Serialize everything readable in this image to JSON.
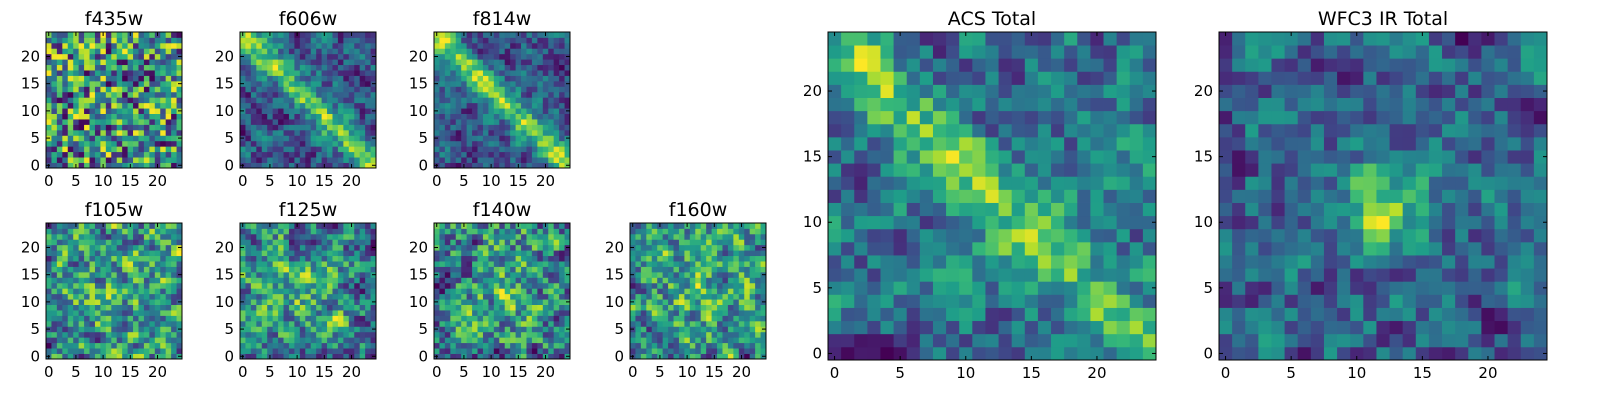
{
  "figure": {
    "colormap": "viridis",
    "background": "#ffffff"
  },
  "chart_data": [
    {
      "type": "heatmap",
      "title": "f435w",
      "grid_size": [
        25,
        25
      ],
      "xlim": [
        0,
        24
      ],
      "ylim": [
        0,
        24
      ],
      "xticks": [
        "0",
        "5",
        "10",
        "15",
        "20"
      ],
      "yticks": [
        "0",
        "5",
        "10",
        "15",
        "20"
      ],
      "pattern": "noise",
      "seed": 11,
      "contrast": 1.0
    },
    {
      "type": "heatmap",
      "title": "f606w",
      "grid_size": [
        25,
        25
      ],
      "xlim": [
        0,
        24
      ],
      "ylim": [
        0,
        24
      ],
      "xticks": [
        "0",
        "5",
        "10",
        "15",
        "20"
      ],
      "yticks": [
        "0",
        "5",
        "10",
        "15",
        "20"
      ],
      "pattern": "diagonal",
      "seed": 23,
      "contrast": 1.0
    },
    {
      "type": "heatmap",
      "title": "f814w",
      "grid_size": [
        25,
        25
      ],
      "xlim": [
        0,
        24
      ],
      "ylim": [
        0,
        24
      ],
      "xticks": [
        "0",
        "5",
        "10",
        "15",
        "20"
      ],
      "yticks": [
        "0",
        "5",
        "10",
        "15",
        "20"
      ],
      "pattern": "diagonal",
      "seed": 37,
      "contrast": 1.2
    },
    {
      "type": "heatmap",
      "title": "f105w",
      "grid_size": [
        25,
        25
      ],
      "xlim": [
        0,
        24
      ],
      "ylim": [
        0,
        24
      ],
      "xticks": [
        "0",
        "5",
        "10",
        "15",
        "20"
      ],
      "yticks": [
        "0",
        "5",
        "10",
        "15",
        "20"
      ],
      "pattern": "blob",
      "seed": 41,
      "contrast": 0.8
    },
    {
      "type": "heatmap",
      "title": "f125w",
      "grid_size": [
        25,
        25
      ],
      "xlim": [
        0,
        24
      ],
      "ylim": [
        0,
        24
      ],
      "xticks": [
        "0",
        "5",
        "10",
        "15",
        "20"
      ],
      "yticks": [
        "0",
        "5",
        "10",
        "15",
        "20"
      ],
      "pattern": "blob",
      "seed": 53,
      "contrast": 0.8
    },
    {
      "type": "heatmap",
      "title": "f140w",
      "grid_size": [
        25,
        25
      ],
      "xlim": [
        0,
        24
      ],
      "ylim": [
        0,
        24
      ],
      "xticks": [
        "0",
        "5",
        "10",
        "15",
        "20"
      ],
      "yticks": [
        "0",
        "5",
        "10",
        "15",
        "20"
      ],
      "pattern": "blob",
      "seed": 67,
      "contrast": 0.8
    },
    {
      "type": "heatmap",
      "title": "f160w",
      "grid_size": [
        25,
        25
      ],
      "xlim": [
        0,
        24
      ],
      "ylim": [
        0,
        24
      ],
      "xticks": [
        "0",
        "5",
        "10",
        "15",
        "20"
      ],
      "yticks": [
        "0",
        "5",
        "10",
        "15",
        "20"
      ],
      "pattern": "blob",
      "seed": 79,
      "contrast": 0.9
    },
    {
      "type": "heatmap",
      "title": "ACS Total",
      "grid_size": [
        25,
        25
      ],
      "xlim": [
        0,
        24
      ],
      "ylim": [
        0,
        24
      ],
      "xticks": [
        "0",
        "5",
        "10",
        "15",
        "20"
      ],
      "yticks": [
        "0",
        "5",
        "10",
        "15",
        "20"
      ],
      "pattern": "diagonal",
      "seed": 97,
      "contrast": 0.8
    },
    {
      "type": "heatmap",
      "title": "WFC3 IR Total",
      "grid_size": [
        25,
        25
      ],
      "xlim": [
        0,
        24
      ],
      "ylim": [
        0,
        24
      ],
      "xticks": [
        "0",
        "5",
        "10",
        "15",
        "20"
      ],
      "yticks": [
        "0",
        "5",
        "10",
        "15",
        "20"
      ],
      "pattern": "center",
      "seed": 113,
      "contrast": 0.6
    }
  ]
}
